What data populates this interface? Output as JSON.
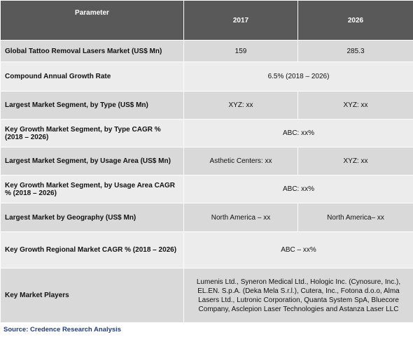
{
  "table": {
    "header": [
      "Parameter",
      "2017",
      "2026"
    ],
    "rows": [
      [
        "Global Tattoo Removal Lasers Market (US$ Mn)",
        "159",
        "285.3"
      ],
      [
        "Compound Annual Growth Rate",
        "6.5% (2018 – 2026)"
      ],
      [
        "Largest Market Segment, by Type (US$ Mn)",
        "XYZ: xx",
        "XYZ: xx"
      ],
      [
        "Key Growth Market Segment, by Type CAGR % (2018 – 2026)",
        "ABC: xx%"
      ],
      [
        "Largest Market Segment, by Usage Area (US$ Mn)",
        "Asthetic Centers: xx",
        "XYZ: xx"
      ],
      [
        "Key Growth Market Segment, by Usage Area CAGR % (2018 – 2026)",
        "ABC: xx%"
      ],
      [
        "Largest Market by Geography (US$ Mn)",
        "North America – xx",
        "North America– xx"
      ],
      [
        "Key Growth Regional Market CAGR % (2018 – 2026)",
        "ABC – xx%"
      ],
      [
        "Key Market Players",
        "Lumenis Ltd., Syneron Medical Ltd., Hologic Inc. (Cynosure, Inc.), EL.EN. S.p.A. (Deka Mela S.r.l.), Cutera, Inc., Fotona d.o.o, Alma Lasers Ltd., Lutronic Corporation, Quanta System SpA, Bluecore Company, Asclepion Laser Technologies and Astanza Laser LLC"
      ]
    ]
  },
  "source": "Source: Credence Research Analysis"
}
